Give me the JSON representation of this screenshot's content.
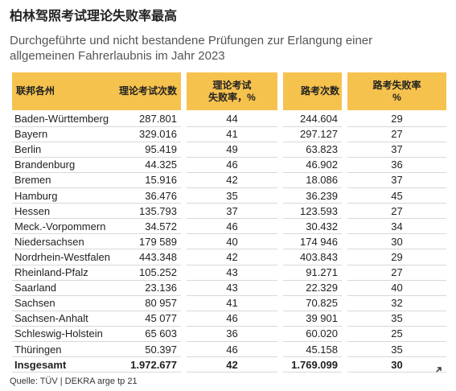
{
  "header": {
    "title": "柏林驾照考试理论失败率最高",
    "subtitle": [
      "Durchgeführte und nicht bestandene Prüfungen zur Erlangung einer",
      "allgemeinen Fahrerlaubnis im Jahr 2023"
    ]
  },
  "table": {
    "columns": [
      [
        "联邦各州"
      ],
      [
        "理论考试次数"
      ],
      [
        "理论考试",
        "失败率，%"
      ],
      [
        "路考次数"
      ],
      [
        "路考失败率",
        "%"
      ]
    ],
    "rows": [
      [
        "Baden-Württemberg",
        "287.801",
        "44",
        "244.604",
        "29"
      ],
      [
        "Bayern",
        "329.016",
        "41",
        "297.127",
        "27"
      ],
      [
        "Berlin",
        "95.419",
        "49",
        "63.823",
        "37"
      ],
      [
        "Brandenburg",
        "44.325",
        "46",
        "46.902",
        "36"
      ],
      [
        "Bremen",
        "15.916",
        "42",
        "18.086",
        "37"
      ],
      [
        "Hamburg",
        "36.476",
        "35",
        "36.239",
        "45"
      ],
      [
        "Hessen",
        "135.793",
        "37",
        "123.593",
        "27"
      ],
      [
        "Meck.-Vorpommern",
        "34.572",
        "46",
        "30.432",
        "34"
      ],
      [
        "Niedersachsen",
        "179 589",
        "40",
        "174 946",
        "30"
      ],
      [
        "Nordrhein-Westfalen",
        "443.348",
        "42",
        "403.843",
        "29"
      ],
      [
        "Rheinland-Pfalz",
        "105.252",
        "43",
        "91.271",
        "27"
      ],
      [
        "Saarland",
        "23.136",
        "43",
        "22.329",
        "40"
      ],
      [
        "Sachsen",
        "80 957",
        "41",
        "70.825",
        "32"
      ],
      [
        "Sachsen-Anhalt",
        "45 077",
        "46",
        "39 901",
        "35"
      ],
      [
        "Schleswig-Holstein",
        "65 603",
        "36",
        "60.020",
        "25"
      ],
      [
        "Thüringen",
        "50.397",
        "46",
        "45.158",
        "35"
      ]
    ],
    "total": [
      "Insgesamt",
      "1.972.677",
      "42",
      "1.769.099",
      "30"
    ]
  },
  "footer": {
    "source": "Quelle: TÜV | DEKRA arge tp 21"
  }
}
